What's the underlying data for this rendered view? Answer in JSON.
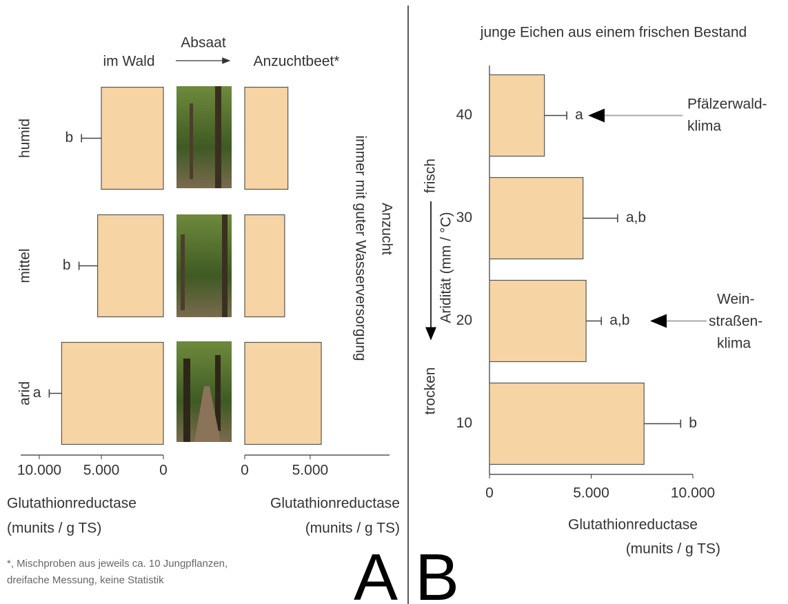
{
  "figure": {
    "panel_labels": [
      "A",
      "B"
    ],
    "sowing": "Absaat",
    "side_label": [
      "Anzucht",
      "immer mit guter Wasserversorgung"
    ],
    "footnote": [
      "*, Mischproben aus jeweils ca. 10 Jungpflanzen,",
      "dreifache Messung, keine Statistik"
    ]
  },
  "chart_data": [
    {
      "type": "bar",
      "orientation": "horizontal",
      "title": "im Wald",
      "categories": [
        "humid",
        "mittel",
        "arid"
      ],
      "values": [
        5000,
        5300,
        8200
      ],
      "errors": [
        1600,
        1500,
        1000
      ],
      "significance_labels": [
        "b",
        "b",
        "a"
      ],
      "color": "#f7d4a4",
      "xlim": [
        0,
        11500
      ],
      "x_reversed": true,
      "xticks": [
        {
          "value": 10000,
          "label": "10.000"
        },
        {
          "value": 5000,
          "label": "5.000"
        },
        0
      ],
      "xlabel": [
        "Glutathionreductase",
        "(munits / g TS)"
      ]
    },
    {
      "type": "bar",
      "orientation": "horizontal",
      "title": "Anzuchtbeet*",
      "values": [
        3300,
        3050,
        5850
      ],
      "color": "#f7d4a4",
      "xlim": [
        0,
        10800
      ],
      "x_reversed": false,
      "xticks": [
        0,
        {
          "value": 5000,
          "label": "5.000"
        }
      ],
      "xlabel": [
        "Glutathionreductase",
        "(munits / g TS)"
      ]
    },
    {
      "type": "bar",
      "orientation": "horizontal",
      "title": "junge Eichen aus einem frischen Bestand",
      "categories": [
        "40",
        "30",
        "20",
        "10"
      ],
      "values": [
        2700,
        4600,
        4750,
        7600
      ],
      "errors": [
        1100,
        1700,
        750,
        1800
      ],
      "significance_labels": [
        "a",
        "a,b",
        "a,b",
        "b"
      ],
      "color": "#f7d4a4",
      "xlim": [
        0,
        10000
      ],
      "x_reversed": false,
      "xticks": [
        0,
        {
          "value": 5000,
          "label": "5.000"
        },
        {
          "value": 10000,
          "label": "10.000"
        }
      ],
      "xlabel": [
        "Glutathionreductase",
        "(munits / g TS)"
      ],
      "ylabel": "Aridität (mm / °C)",
      "y_direction_labels": [
        "frisch",
        "trocken"
      ],
      "annotations": [
        {
          "lines": [
            "Pfälzerwald-",
            "klima"
          ]
        },
        {
          "lines": [
            "Wein-",
            "straßen-",
            "klima"
          ]
        }
      ]
    }
  ]
}
